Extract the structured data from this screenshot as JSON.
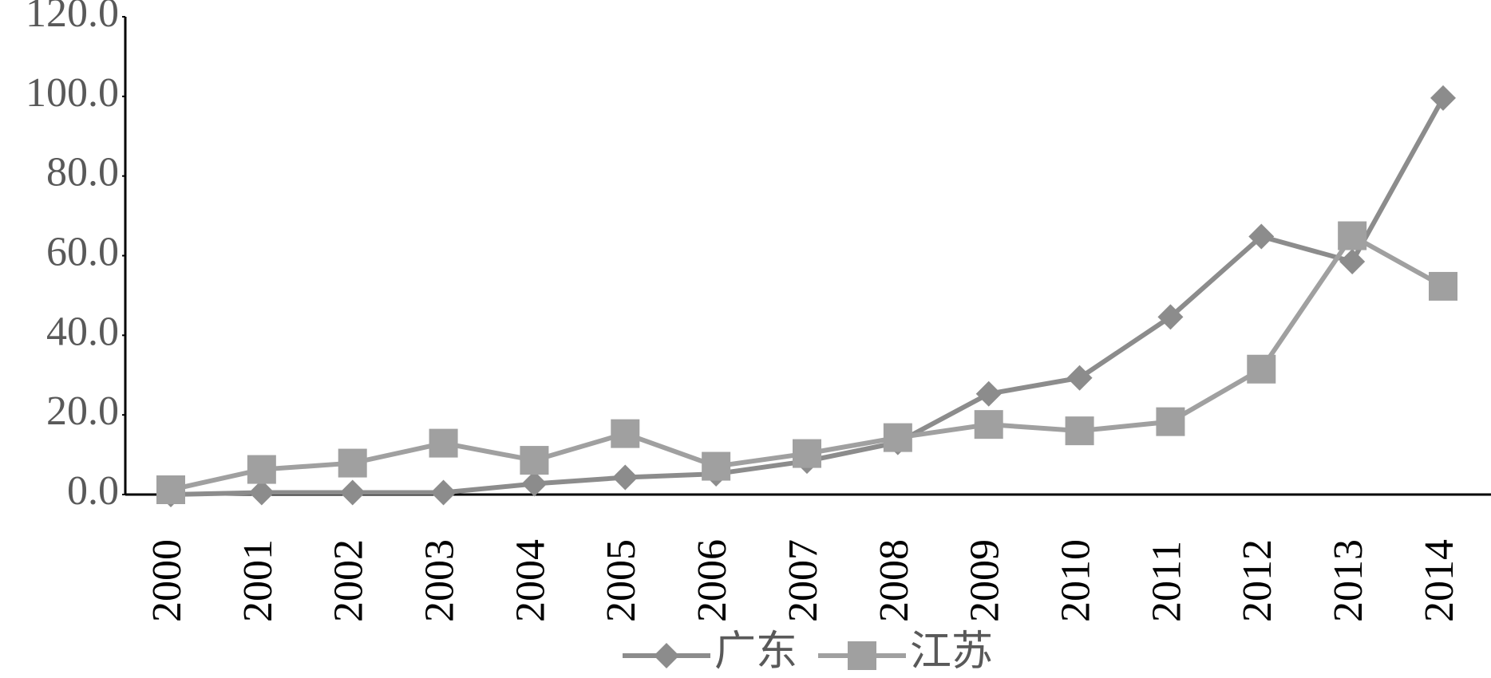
{
  "chart_data": {
    "type": "line",
    "categories": [
      "2000",
      "2001",
      "2002",
      "2003",
      "2004",
      "2005",
      "2006",
      "2007",
      "2008",
      "2009",
      "2010",
      "2011",
      "2012",
      "2013",
      "2014"
    ],
    "series": [
      {
        "name": "广东",
        "color": "#8c8c8c",
        "marker": "diamond",
        "values": [
          0,
          0.5,
          0.5,
          0.5,
          2.7,
          4.3,
          5.2,
          8.4,
          13.1,
          25.3,
          29.3,
          44.6,
          64.8,
          58.5,
          99.6
        ]
      },
      {
        "name": "江苏",
        "color": "#a0a0a0",
        "marker": "square",
        "values": [
          1.2,
          6.3,
          7.9,
          12.9,
          8.6,
          15.3,
          7.1,
          10.3,
          14.3,
          17.6,
          16.0,
          18.3,
          31.5,
          65.0,
          52.3
        ]
      }
    ],
    "ylim": [
      0,
      120
    ],
    "yticks": [
      {
        "value": 0,
        "label": "0.0"
      },
      {
        "value": 20,
        "label": "20.0"
      },
      {
        "value": 40,
        "label": "40.0"
      },
      {
        "value": 60,
        "label": "60.0"
      },
      {
        "value": 80,
        "label": "80.0"
      },
      {
        "value": 100,
        "label": "100.0"
      },
      {
        "value": 120,
        "label": "120.0"
      }
    ],
    "grid": false,
    "legend": "bottom"
  }
}
